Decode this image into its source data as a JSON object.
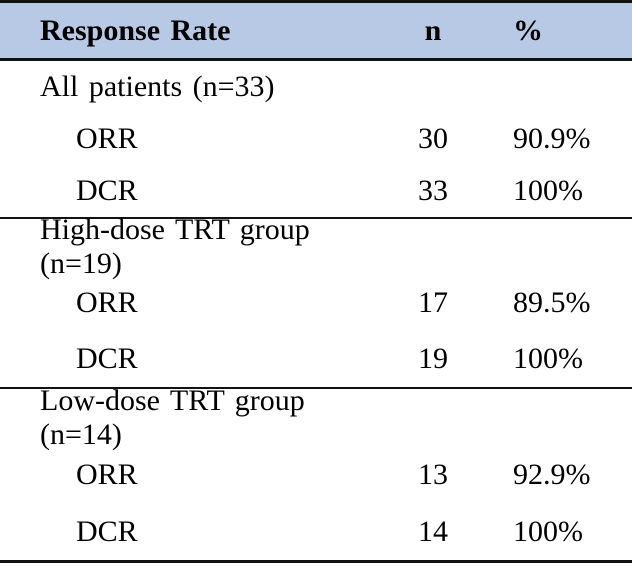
{
  "colors": {
    "header_bg": "#b7c9e5",
    "border": "#121212",
    "text": "#000000"
  },
  "table": {
    "header": {
      "label": "Response Rate",
      "n": "n",
      "pct": "%"
    },
    "sections": [
      {
        "title": "All patients (n=33)",
        "rows": [
          {
            "label": "ORR",
            "n": "30",
            "pct": "90.9%"
          },
          {
            "label": "DCR",
            "n": "33",
            "pct": "100%"
          }
        ]
      },
      {
        "title": "High-dose TRT group (n=19)",
        "rows": [
          {
            "label": "ORR",
            "n": "17",
            "pct": "89.5%"
          },
          {
            "label": "DCR",
            "n": "19",
            "pct": "100%"
          }
        ]
      },
      {
        "title": "Low-dose TRT group (n=14)",
        "rows": [
          {
            "label": "ORR",
            "n": "13",
            "pct": "92.9%"
          },
          {
            "label": "DCR",
            "n": "14",
            "pct": "100%"
          }
        ]
      }
    ]
  }
}
